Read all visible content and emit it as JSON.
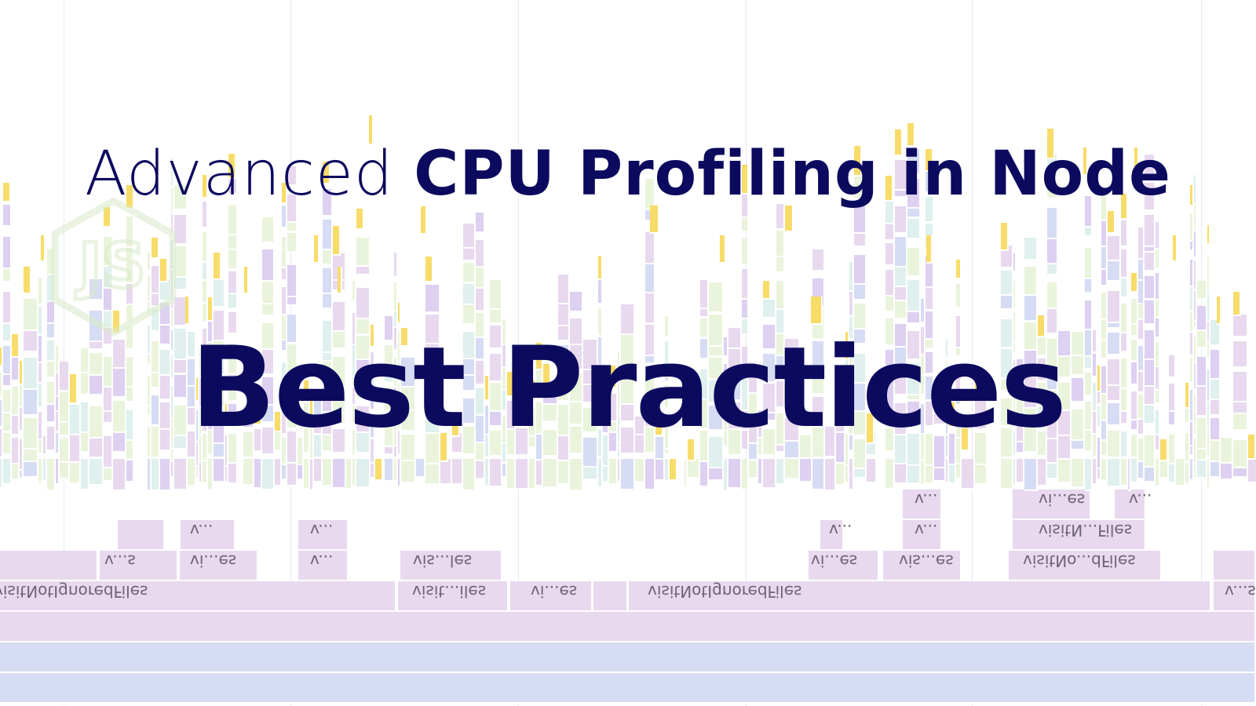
{
  "headline": {
    "prefix": "Advanced",
    "emphasis": "CPU Profiling in Node"
  },
  "subtitle": "Best Practices",
  "logo": {
    "icon": "nodejs-hexagon-icon",
    "text": "JS"
  },
  "flamegraph_labels": [
    "visitNotIgnoredFiles",
    "visit...iles",
    "vi...es",
    "visitNotIgnoredFiles",
    "v...s",
    "v...s",
    "vi...es",
    "v...",
    "vis...les",
    "vi...es",
    "vis...es",
    "visitNo...dFiles",
    "v...",
    "v...",
    "v...",
    "v...",
    "visitN...Files",
    "v...",
    "vi...es",
    "v..."
  ],
  "colors": {
    "title_text": "#0c0a5e",
    "frame_purple": "#e8d9ef",
    "frame_blue": "#d6dcf3",
    "frame_green": "#eaf4dc",
    "frame_yellow": "#f7dc6a",
    "frame_lavender": "#ddd0f1",
    "frame_teal": "#dff0ee",
    "logo_stroke": "#d9ebcb"
  }
}
